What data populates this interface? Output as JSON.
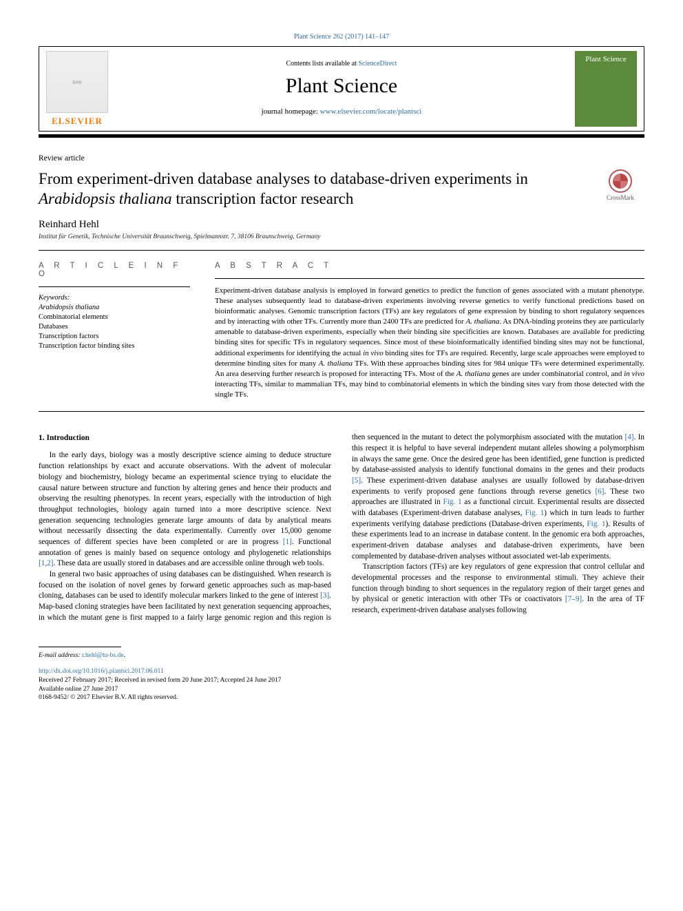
{
  "top_citation": "Plant Science 262 (2017) 141–147",
  "header": {
    "contents_prefix": "Contents lists available at ",
    "contents_link": "ScienceDirect",
    "journal_title": "Plant Science",
    "homepage_prefix": "journal homepage: ",
    "homepage_url": "www.elsevier.com/locate/plantsci",
    "publisher_word": "ELSEVIER",
    "cover_label": "Plant Science"
  },
  "article": {
    "type": "Review article",
    "title_html": "From experiment-driven database analyses to database-driven experiments in <em>Arabidopsis thaliana</em> transcription factor research",
    "crossmark_label": "CrossMark",
    "author": "Reinhard Hehl",
    "affiliation": "Institut für Genetik, Technische Universität Braunschweig, Spielmannstr. 7, 38106 Braunschweig, Germany"
  },
  "info": {
    "heading": "A R T I C L E   I N F O",
    "keywords_label": "Keywords:",
    "keywords_html": "<em>Arabidopsis thaliana</em><br>Combinatorial elements<br>Databases<br>Transcription factors<br>Transcription factor binding sites"
  },
  "abstract": {
    "heading": "A B S T R A C T",
    "text_html": "Experiment-driven database analysis is employed in forward genetics to predict the function of genes associated with a mutant phenotype. These analyses subsequently lead to database-driven experiments involving reverse genetics to verify functional predictions based on bioinformatic analyses. Genomic transcription factors (TFs) are key regulators of gene expression by binding to short regulatory sequences and by interacting with other TFs. Currently more than 2400 TFs are predicted for <em>A. thaliana</em>. As DNA-binding proteins they are particularly amenable to database-driven experiments, especially when their binding site specificities are known. Databases are available for predicting binding sites for specific TFs in regulatory sequences. Since most of these bioinformatically identified binding sites may not be functional, additional experiments for identifying the actual <em>in vivo</em> binding sites for TFs are required. Recently, large scale approaches were employed to determine binding sites for many <em>A. thaliana</em> TFs. With these approaches binding sites for 984 unique TFs were determined experimentally. An area deserving further research is proposed for interacting TFs. Most of the <em>A. thaliana</em> genes are under combinatorial control, and <em>in vivo</em> interacting TFs, similar to mammalian TFs, may bind to combinatorial elements in which the binding sites vary from those detected with the single TFs."
  },
  "body": {
    "heading": "1. Introduction",
    "p1_html": "In the early days, biology was a mostly descriptive science aiming to deduce structure function relationships by exact and accurate observations. With the advent of molecular biology and biochemistry, biology became an experimental science trying to elucidate the causal nature between structure and function by altering genes and hence their products and observing the resulting phenotypes. In recent years, especially with the introduction of high throughput technologies, biology again turned into a more descriptive science. Next generation sequencing technologies generate large amounts of data by analytical means without necessarily dissecting the data experimentally. Currently over 15,000 genome sequences of different species have been completed or are in progress <a class='ref' href='#'>[1]</a>. Functional annotation of genes is mainly based on sequence ontology and phylogenetic relationships <a class='ref' href='#'>[1,2]</a>. These data are usually stored in databases and are accessible online through web tools.",
    "p2_html": "In general two basic approaches of using databases can be distinguished. When research is focused on the isolation of novel genes by forward genetic approaches such as map-based cloning, databases can be used to identify molecular markers linked to the gene of interest <a class='ref' href='#'>[3]</a>. Map-based cloning strategies have been facilitated by next generation sequencing approaches, in which the mutant gene is first mapped to a fairly large genomic region and this region is then sequenced in the mutant to detect the polymorphism associated with the mutation <a class='ref' href='#'>[4]</a>. In this respect it is helpful to have several independent mutant alleles showing a polymorphism in always the same gene. Once the desired gene has been identified, gene function is predicted by database-assisted analysis to identify functional domains in the genes and their products <a class='ref' href='#'>[5]</a>. These experiment-driven database analyses are usually followed by database-driven experiments to verify proposed gene functions through reverse genetics <a class='ref' href='#'>[6]</a>. These two approaches are illustrated in <a class='ref' href='#'>Fig. 1</a> as a functional circuit. Experimental results are dissected with databases (Experiment-driven database analyses, <a class='ref' href='#'>Fig. 1</a>) which in turn leads to further experiments verifying database predictions (Database-driven experiments, <a class='ref' href='#'>Fig. 1</a>). Results of these experiments lead to an increase in database content. In the genomic era both approaches, experiment-driven database analyses and database-driven experiments, have been complemented by database-driven analyses without associated wet-lab experiments.",
    "p3_html": "Transcription factors (TFs) are key regulators of gene expression that control cellular and developmental processes and the response to environmental stimuli. They achieve their function through binding to short sequences in the regulatory region of their target genes and by physical or genetic interaction with other TFs or coactivators <a class='ref' href='#'>[7–9]</a>. In the area of TF research, experiment-driven database analyses following"
  },
  "footer": {
    "email_label": "E-mail address: ",
    "email": "r.hehl@tu-bs.de",
    "doi": "http://dx.doi.org/10.1016/j.plantsci.2017.06.011",
    "received": "Received 27 February 2017; Received in revised form 20 June 2017; Accepted 24 June 2017",
    "available": "Available online 27 June 2017",
    "copyright": "0168-9452/ © 2017 Elsevier B.V. All rights reserved."
  },
  "colors": {
    "link": "#2a6fb3",
    "elsevier_orange": "#ff7a00",
    "cover_green": "#5b8a3a"
  }
}
